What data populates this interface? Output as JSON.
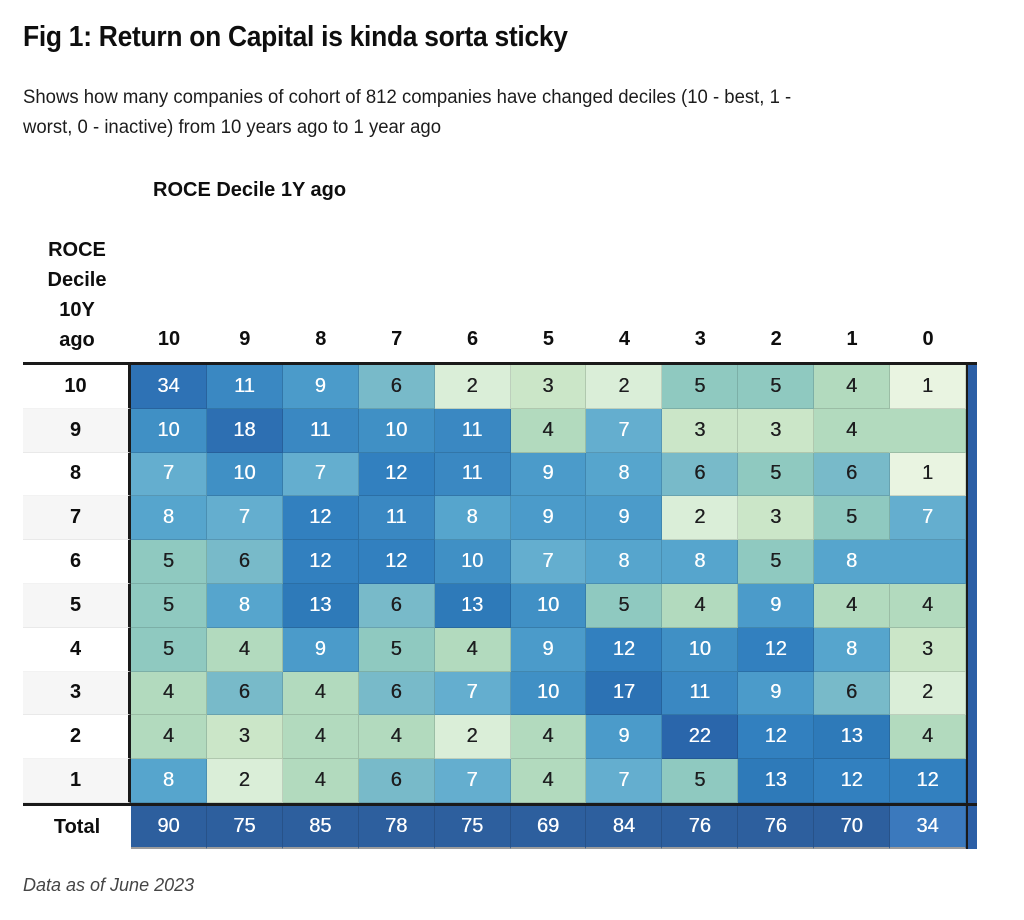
{
  "title": "Fig 1: Return on Capital is kinda sorta sticky",
  "subtitle_lines": [
    "Shows how many companies of cohort of 812 companies have changed deciles (10 - best, 1 -",
    "worst, 0 - inactive) from 10 years ago to 1 year ago"
  ],
  "footnote": "Data as of June 2023",
  "chart_data": {
    "type": "heatmap",
    "title": "Fig 1: Return on Capital is kinda sorta sticky",
    "cohort_size": 812,
    "col_axis_title": "ROCE Decile 1Y ago",
    "row_axis_title_lines": [
      "ROCE",
      "Decile",
      "10Y",
      "ago"
    ],
    "columns": [
      "10",
      "9",
      "8",
      "7",
      "6",
      "5",
      "4",
      "3",
      "2",
      "1",
      "0"
    ],
    "rows": [
      {
        "label": "10",
        "values": [
          34,
          11,
          9,
          6,
          2,
          3,
          2,
          5,
          5,
          4,
          1
        ]
      },
      {
        "label": "9",
        "values": [
          10,
          18,
          11,
          10,
          11,
          4,
          7,
          3,
          3,
          4,
          null
        ]
      },
      {
        "label": "8",
        "values": [
          7,
          10,
          7,
          12,
          11,
          9,
          8,
          6,
          5,
          6,
          1
        ]
      },
      {
        "label": "7",
        "values": [
          8,
          7,
          12,
          11,
          8,
          9,
          9,
          2,
          3,
          5,
          7
        ]
      },
      {
        "label": "6",
        "values": [
          5,
          6,
          12,
          12,
          10,
          7,
          8,
          8,
          5,
          8,
          null
        ]
      },
      {
        "label": "5",
        "values": [
          5,
          8,
          13,
          6,
          13,
          10,
          5,
          4,
          9,
          4,
          4
        ]
      },
      {
        "label": "4",
        "values": [
          5,
          4,
          9,
          5,
          4,
          9,
          12,
          10,
          12,
          8,
          3
        ]
      },
      {
        "label": "3",
        "values": [
          4,
          6,
          4,
          6,
          7,
          10,
          17,
          11,
          9,
          6,
          2
        ]
      },
      {
        "label": "2",
        "values": [
          4,
          3,
          4,
          4,
          2,
          4,
          9,
          22,
          12,
          13,
          4
        ]
      },
      {
        "label": "1",
        "values": [
          8,
          2,
          4,
          6,
          7,
          4,
          7,
          5,
          13,
          12,
          12
        ]
      }
    ],
    "total_row": {
      "label": "Total",
      "values": [
        90,
        75,
        85,
        78,
        75,
        69,
        84,
        76,
        76,
        70,
        34
      ]
    },
    "value_colors": {
      "1": "#e9f4e1",
      "2": "#daeed8",
      "3": "#cbe6c8",
      "4": "#b2dabe",
      "5": "#8fc9c0",
      "6": "#78bac9",
      "7": "#64aecf",
      "8": "#56a5cd",
      "9": "#4b9bca",
      "10": "#4090c5",
      "11": "#3a88c2",
      "12": "#3280bf",
      "13": "#2e7ab9",
      "17": "#2c72b4",
      "18": "#2d6fb2",
      "22": "#2a66ab",
      "34": "#2e72b5"
    },
    "total_color": "#2d5f9e",
    "total_last_color": "#3b79bd",
    "edge_strip_color": "#2c5fa6",
    "dark_text_color": "#1d1d1f",
    "light_text_color": "#ffffff"
  }
}
